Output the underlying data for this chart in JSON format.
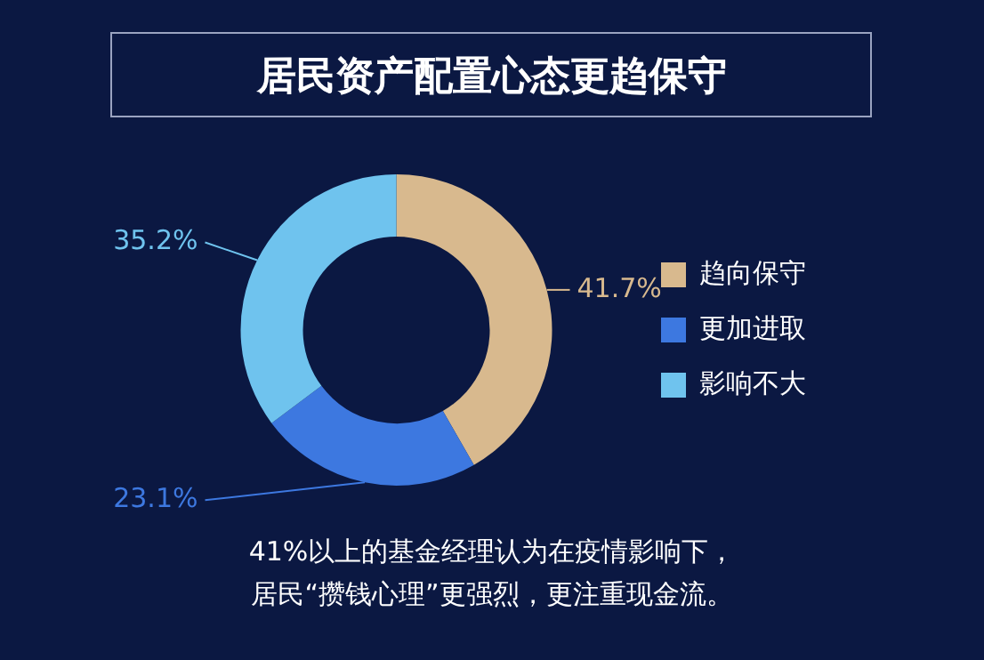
{
  "chart_data": {
    "type": "donut",
    "title": "居民资产配置心态更趋保守",
    "categories": [
      "趋向保守",
      "更加进取",
      "影响不大"
    ],
    "values": [
      41.7,
      23.1,
      35.2
    ],
    "colors": [
      "#d8b98e",
      "#3d78e0",
      "#6fc3ee"
    ],
    "value_labels": [
      "41.7%",
      "23.1%",
      "35.2%"
    ],
    "legend": "right",
    "annotations": [
      "41%以上的基金经理认为在疫情影响下，",
      "居民“攒钱心理”更强烈，更注重现金流。"
    ]
  }
}
